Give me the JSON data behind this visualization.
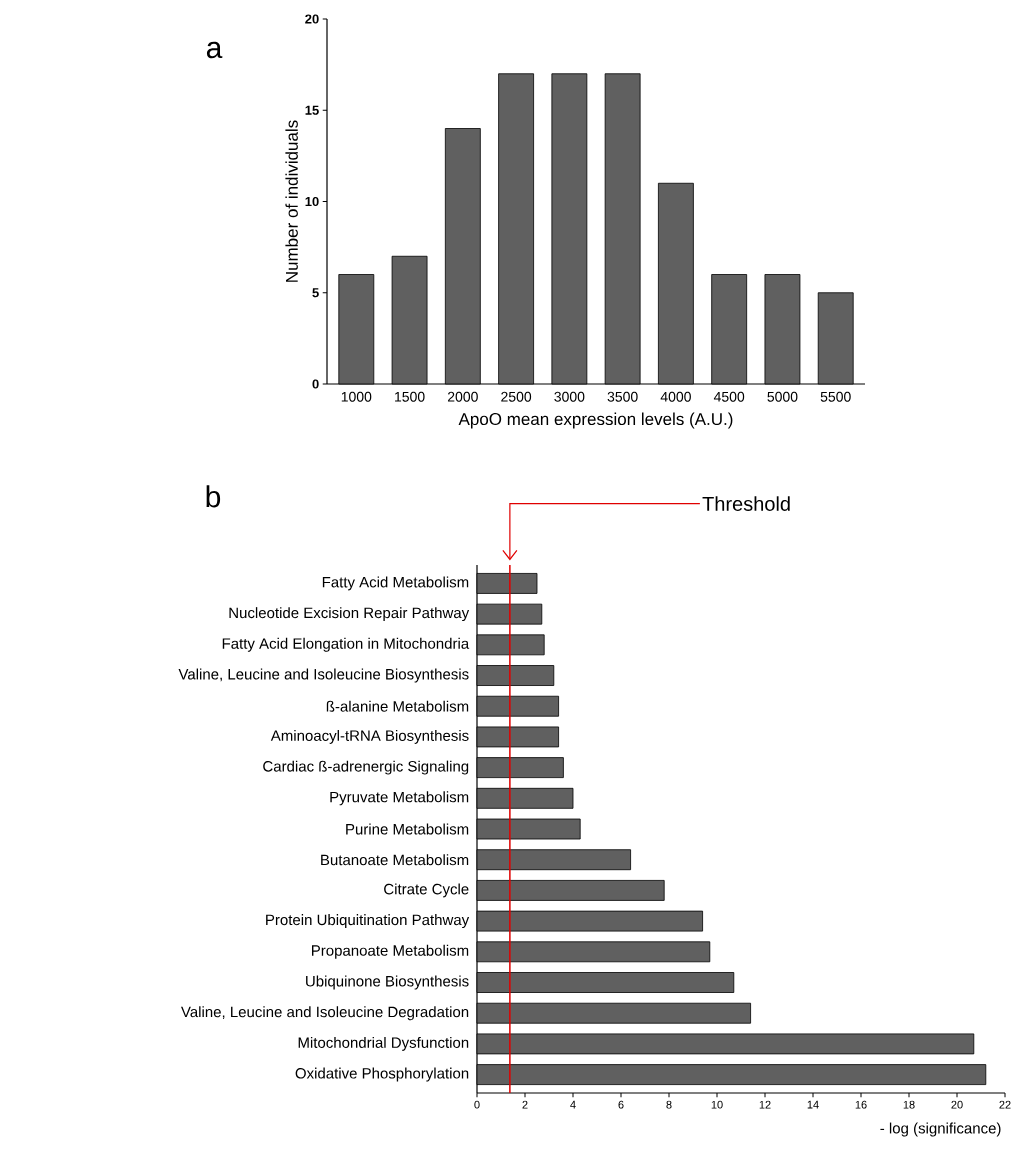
{
  "chart_data": [
    {
      "type": "bar",
      "xlabel": "ApoO mean expression levels (A.U.)",
      "ylabel": "Number of individuals",
      "annotations": [
        "a"
      ],
      "categories": [
        "1000",
        "1500",
        "2000",
        "2500",
        "3000",
        "3500",
        "4000",
        "4500",
        "5000",
        "5500"
      ],
      "values": [
        6,
        7,
        14,
        17,
        17,
        17,
        11,
        6,
        6,
        5
      ],
      "color": "#606060",
      "ylim": [
        0,
        20
      ],
      "yticks": [
        0,
        5,
        10,
        15,
        20
      ]
    },
    {
      "type": "bar",
      "orientation": "horizontal",
      "xlabel": "- log (significance)",
      "annotations": [
        "b"
      ],
      "categories": [
        "Fatty Acid Metabolism",
        "Nucleotide Excision Repair Pathway",
        "Fatty Acid Elongation in Mitochondria",
        "Valine, Leucine and Isoleucine Biosynthesis",
        "ß-alanine Metabolism",
        "Aminoacyl-tRNA Biosynthesis",
        "Cardiac ß-adrenergic Signaling",
        "Pyruvate Metabolism",
        "Purine Metabolism",
        "Butanoate Metabolism",
        "Citrate Cycle",
        "Protein Ubiquitination Pathway",
        "Propanoate Metabolism",
        "Ubiquinone Biosynthesis",
        "Valine, Leucine and Isoleucine Degradation",
        "Mitochondrial Dysfunction",
        "Oxidative Phosphorylation"
      ],
      "values": [
        2.5,
        2.7,
        2.8,
        3.2,
        3.4,
        3.4,
        3.6,
        4.0,
        4.3,
        6.4,
        7.8,
        9.4,
        9.7,
        10.7,
        11.4,
        20.7,
        21.2
      ],
      "color": "#606060",
      "xlim": [
        0,
        22
      ],
      "xticks": [
        0,
        2,
        4,
        6,
        8,
        10,
        12,
        14,
        16,
        18,
        20,
        22
      ],
      "ref_lines": [
        {
          "axis": "x",
          "value": 1.37,
          "label": "Threshold",
          "color": "#e00000"
        }
      ]
    }
  ]
}
